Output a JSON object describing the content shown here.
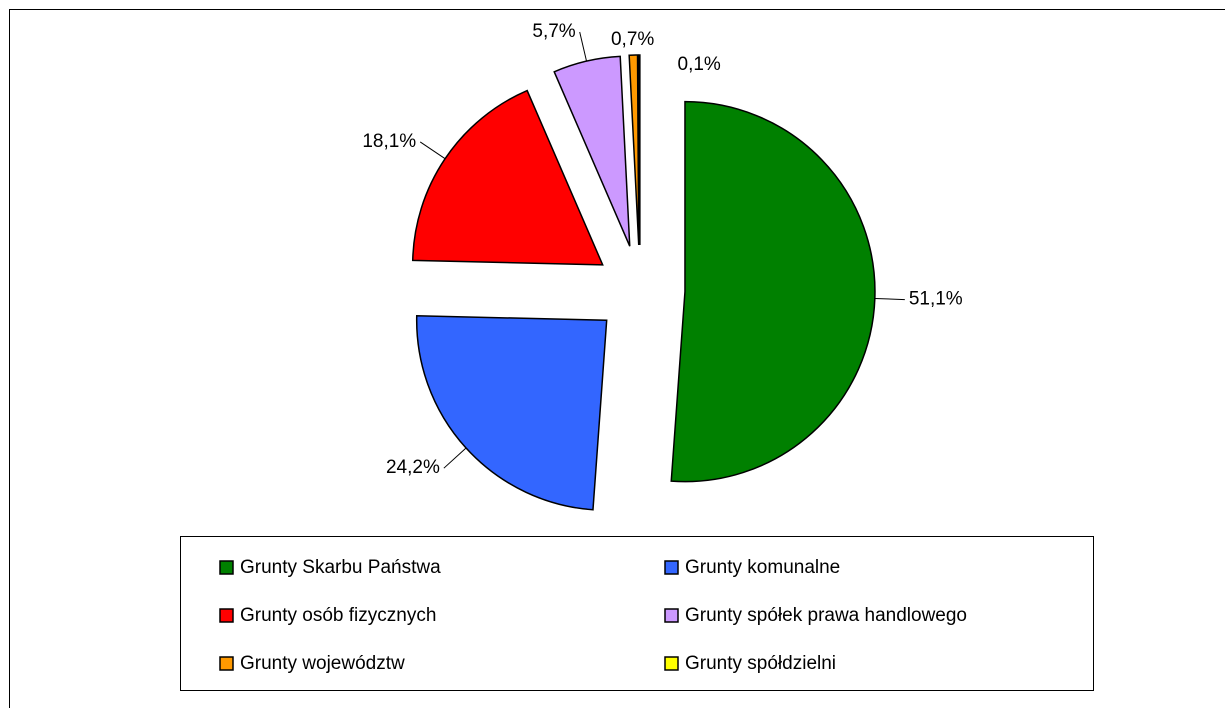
{
  "chart_data": {
    "type": "pie",
    "categories": [
      "Grunty Skarbu Państwa",
      "Grunty komunalne",
      "Grunty osób fizycznych",
      "Grunty spółek prawa handlowego",
      "Grunty województw",
      "Grunty spółdzielni"
    ],
    "values": [
      51.1,
      24.2,
      18.1,
      5.7,
      0.7,
      0.1
    ],
    "value_labels": [
      "51,1%",
      "24,2%",
      "18,1%",
      "5,7%",
      "0,7%",
      "0,1%"
    ],
    "colors": [
      "#008000",
      "#3366ff",
      "#ff0000",
      "#cc99ff",
      "#ff9900",
      "#ffff00"
    ],
    "legend": "bottom"
  }
}
